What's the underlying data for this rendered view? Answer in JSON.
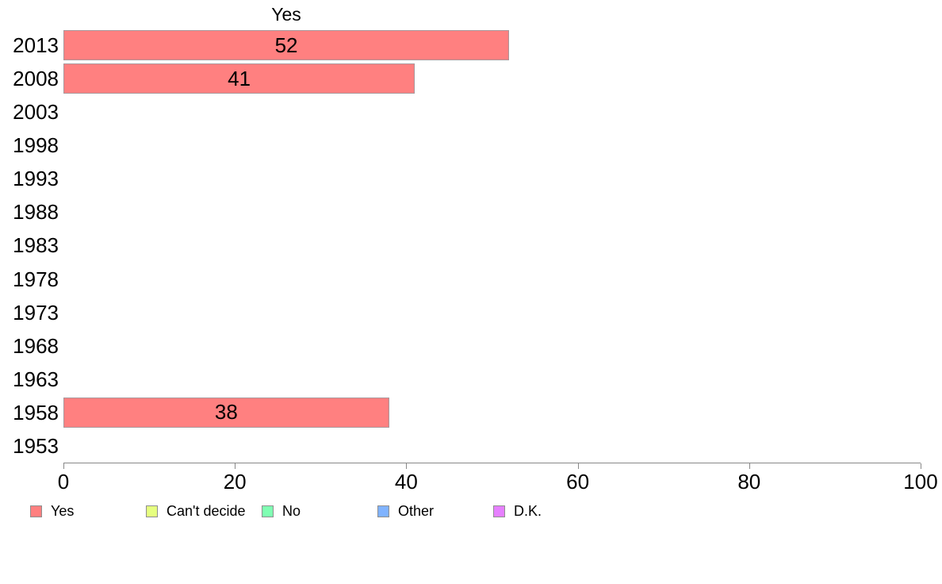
{
  "chart_data": {
    "type": "bar",
    "orientation": "horizontal",
    "title": "Yes",
    "categories": [
      "2013",
      "2008",
      "2003",
      "1998",
      "1993",
      "1988",
      "1983",
      "1978",
      "1973",
      "1968",
      "1963",
      "1958",
      "1953"
    ],
    "series": [
      {
        "name": "Yes",
        "color": "#FF8080",
        "values": [
          52,
          41,
          null,
          null,
          null,
          null,
          null,
          null,
          null,
          null,
          null,
          38,
          null
        ]
      }
    ],
    "bar_labels": [
      52,
      41,
      38
    ],
    "xlabel": "",
    "ylabel": "",
    "xlim": [
      0,
      100
    ],
    "x_ticks": [
      "0",
      "20",
      "40",
      "60",
      "80",
      "100"
    ],
    "grid": false,
    "legend_position": "bottom",
    "legend": [
      {
        "label": "Yes",
        "color": "#FF8080"
      },
      {
        "label": "Can't decide",
        "color": "#E6FF80"
      },
      {
        "label": "No",
        "color": "#80FFB3"
      },
      {
        "label": "Other",
        "color": "#80B3FF"
      },
      {
        "label": "D.K.",
        "color": "#E680FF"
      }
    ]
  },
  "colors": {
    "bar_border": "#a9969a",
    "axis": "#888888",
    "swatch_border": "#8e8e8e",
    "background": "#ffffff",
    "text": "#000000"
  }
}
